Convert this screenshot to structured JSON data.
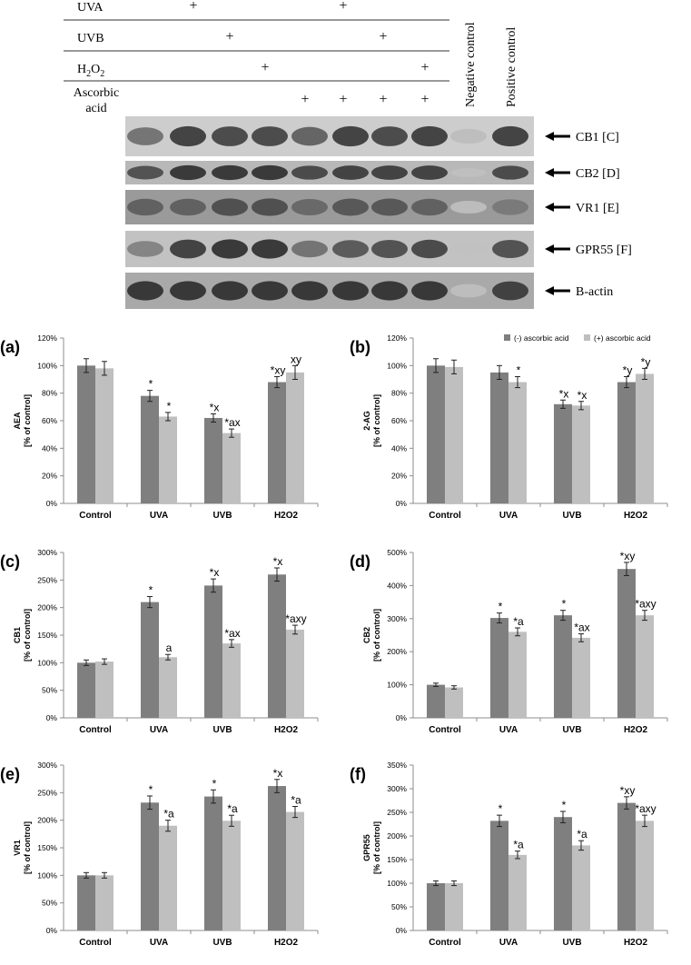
{
  "blot": {
    "conditions": [
      {
        "label": "UVA",
        "cols": [
          1,
          5
        ]
      },
      {
        "label": "UVB",
        "cols": [
          2,
          6
        ]
      },
      {
        "label": "H2O2",
        "cols": [
          3,
          7
        ]
      },
      {
        "label": "Ascorbic acid",
        "cols": [
          4,
          5,
          6,
          7
        ]
      }
    ],
    "column_labels": [
      "Negative control",
      "Positive control"
    ],
    "bands": [
      "CB1  [C]",
      "CB2  [D]",
      "VR1  [E]",
      "GPR55  [F]",
      "B-actin"
    ]
  },
  "legend": [
    "(-) ascorbic acid",
    "(+) ascorbic acid"
  ],
  "colors": {
    "minus": "#7f7f7f",
    "plus": "#bfbfbf",
    "axis": "#8c8c8c"
  },
  "chart_data": [
    {
      "id": "a",
      "panel_label": "(a)",
      "type": "bar",
      "ylabel": "AEA",
      "ylabel_sub": "[% of control]",
      "categories": [
        "Control",
        "UVA",
        "UVB",
        "H2O2"
      ],
      "ylim": [
        0,
        120
      ],
      "yticks": [
        0,
        20,
        40,
        60,
        80,
        100,
        120
      ],
      "tick_suffix": "%",
      "show_legend": false,
      "series": [
        {
          "name": "(-) ascorbic acid",
          "values": [
            100,
            78,
            62,
            88
          ],
          "errors": [
            5,
            4,
            3,
            4
          ],
          "annotations": [
            "",
            "*",
            "*x",
            "*xy"
          ]
        },
        {
          "name": "(+) ascorbic acid",
          "values": [
            98,
            63,
            51,
            95
          ],
          "errors": [
            5,
            3,
            3,
            5
          ],
          "annotations": [
            "",
            "*",
            "*ax",
            "xy"
          ]
        }
      ]
    },
    {
      "id": "b",
      "panel_label": "(b)",
      "type": "bar",
      "ylabel": "2-AG",
      "ylabel_sub": "[% of control]",
      "categories": [
        "Control",
        "UVA",
        "UVB",
        "H2O2"
      ],
      "ylim": [
        0,
        120
      ],
      "yticks": [
        0,
        20,
        40,
        60,
        80,
        100,
        120
      ],
      "tick_suffix": "%",
      "show_legend": true,
      "series": [
        {
          "name": "(-) ascorbic acid",
          "values": [
            100,
            95,
            72,
            88
          ],
          "errors": [
            5,
            5,
            3,
            4
          ],
          "annotations": [
            "",
            "",
            "*x",
            "*y"
          ]
        },
        {
          "name": "(+) ascorbic acid",
          "values": [
            99,
            88,
            71,
            94
          ],
          "errors": [
            5,
            4,
            3,
            4
          ],
          "annotations": [
            "",
            "*",
            "*x",
            "*y"
          ]
        }
      ]
    },
    {
      "id": "c",
      "panel_label": "(c)",
      "type": "bar",
      "ylabel": "CB1",
      "ylabel_sub": "[% of control]",
      "categories": [
        "Control",
        "UVA",
        "UVB",
        "H2O2"
      ],
      "ylim": [
        0,
        300
      ],
      "yticks": [
        0,
        50,
        100,
        150,
        200,
        250,
        300
      ],
      "tick_suffix": "%",
      "show_legend": false,
      "series": [
        {
          "name": "(-) ascorbic acid",
          "values": [
            100,
            210,
            240,
            260
          ],
          "errors": [
            5,
            10,
            12,
            12
          ],
          "annotations": [
            "",
            "*",
            "*x",
            "*x"
          ]
        },
        {
          "name": "(+) ascorbic acid",
          "values": [
            102,
            110,
            135,
            160
          ],
          "errors": [
            5,
            5,
            7,
            8
          ],
          "annotations": [
            "",
            "a",
            "*ax",
            "*axy"
          ]
        }
      ]
    },
    {
      "id": "d",
      "panel_label": "(d)",
      "type": "bar",
      "ylabel": "CB2",
      "ylabel_sub": "[% of control]",
      "categories": [
        "Control",
        "UVA",
        "UVB",
        "H2O2"
      ],
      "ylim": [
        0,
        500
      ],
      "yticks": [
        0,
        100,
        200,
        300,
        400,
        500
      ],
      "tick_suffix": "%",
      "show_legend": false,
      "series": [
        {
          "name": "(-) ascorbic acid",
          "values": [
            100,
            302,
            310,
            450
          ],
          "errors": [
            5,
            15,
            15,
            20
          ],
          "annotations": [
            "",
            "*",
            "*",
            "*xy"
          ]
        },
        {
          "name": "(+) ascorbic acid",
          "values": [
            92,
            260,
            242,
            310
          ],
          "errors": [
            5,
            12,
            12,
            15
          ],
          "annotations": [
            "",
            "*a",
            "*ax",
            "*axy"
          ]
        }
      ]
    },
    {
      "id": "e",
      "panel_label": "(e)",
      "type": "bar",
      "ylabel": "VR1",
      "ylabel_sub": "[% of control]",
      "categories": [
        "Control",
        "UVA",
        "UVB",
        "H2O2"
      ],
      "ylim": [
        0,
        300
      ],
      "yticks": [
        0,
        50,
        100,
        150,
        200,
        250,
        300
      ],
      "tick_suffix": "%",
      "show_legend": false,
      "series": [
        {
          "name": "(-) ascorbic acid",
          "values": [
            100,
            232,
            243,
            262
          ],
          "errors": [
            5,
            12,
            12,
            12
          ],
          "annotations": [
            "",
            "*",
            "*",
            "*x"
          ]
        },
        {
          "name": "(+) ascorbic acid",
          "values": [
            100,
            190,
            199,
            215
          ],
          "errors": [
            5,
            10,
            10,
            10
          ],
          "annotations": [
            "",
            "*a",
            "*a",
            "*a"
          ]
        }
      ]
    },
    {
      "id": "f",
      "panel_label": "(f)",
      "type": "bar",
      "ylabel": "GPR55",
      "ylabel_sub": "[% of control]",
      "categories": [
        "Control",
        "UVA",
        "UVB",
        "H2O2"
      ],
      "ylim": [
        0,
        350
      ],
      "yticks": [
        0,
        50,
        100,
        150,
        200,
        250,
        300,
        350
      ],
      "tick_suffix": "%",
      "show_legend": false,
      "series": [
        {
          "name": "(-) ascorbic acid",
          "values": [
            100,
            232,
            240,
            270
          ],
          "errors": [
            5,
            12,
            12,
            13
          ],
          "annotations": [
            "",
            "*",
            "*",
            "*xy"
          ]
        },
        {
          "name": "(+) ascorbic acid",
          "values": [
            100,
            160,
            180,
            232
          ],
          "errors": [
            5,
            8,
            10,
            12
          ],
          "annotations": [
            "",
            "*a",
            "*a",
            "*axy"
          ]
        }
      ]
    }
  ]
}
